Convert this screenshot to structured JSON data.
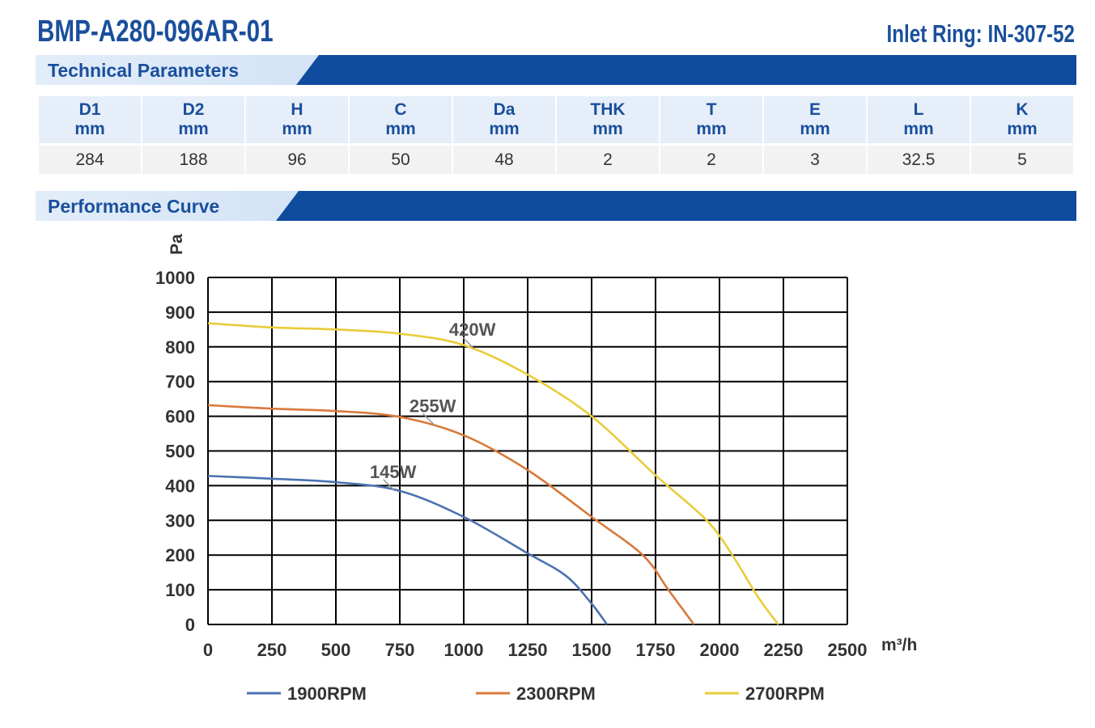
{
  "header": {
    "model": "BMP-A280-096AR-01",
    "inlet_ring": "Inlet Ring: IN-307-52"
  },
  "sections": {
    "technical": "Technical Parameters",
    "performance": "Performance Curve"
  },
  "params": {
    "columns": [
      {
        "name": "D1",
        "unit": "mm",
        "value": "284"
      },
      {
        "name": "D2",
        "unit": "mm",
        "value": "188"
      },
      {
        "name": "H",
        "unit": "mm",
        "value": "96"
      },
      {
        "name": "C",
        "unit": "mm",
        "value": "50"
      },
      {
        "name": "Da",
        "unit": "mm",
        "value": "48"
      },
      {
        "name": "THK",
        "unit": "mm",
        "value": "2"
      },
      {
        "name": "T",
        "unit": "mm",
        "value": "2"
      },
      {
        "name": "E",
        "unit": "mm",
        "value": "3"
      },
      {
        "name": "L",
        "unit": "mm",
        "value": "32.5"
      },
      {
        "name": "K",
        "unit": "mm",
        "value": "5"
      }
    ]
  },
  "chart_data": {
    "type": "line",
    "title": "",
    "xlabel": "m³/h",
    "ylabel": "Pa",
    "xlim": [
      0,
      2500
    ],
    "ylim": [
      0,
      1000
    ],
    "xticks": [
      0,
      250,
      500,
      750,
      1000,
      1250,
      1500,
      1750,
      2000,
      2250,
      2500
    ],
    "yticks": [
      0,
      100,
      200,
      300,
      400,
      500,
      600,
      700,
      800,
      900,
      1000
    ],
    "grid": true,
    "legend_position": "bottom",
    "series": [
      {
        "name": "1900RPM",
        "color": "#4a72b0",
        "points": [
          [
            0,
            428
          ],
          [
            250,
            420
          ],
          [
            500,
            410
          ],
          [
            750,
            385
          ],
          [
            1000,
            310
          ],
          [
            1250,
            205
          ],
          [
            1400,
            140
          ],
          [
            1500,
            60
          ],
          [
            1560,
            0
          ]
        ],
        "annotation": {
          "text": "145W",
          "x": 730,
          "y": 385
        }
      },
      {
        "name": "2300RPM",
        "color": "#d9793a",
        "points": [
          [
            0,
            632
          ],
          [
            250,
            622
          ],
          [
            500,
            615
          ],
          [
            750,
            598
          ],
          [
            1000,
            545
          ],
          [
            1250,
            445
          ],
          [
            1500,
            310
          ],
          [
            1700,
            200
          ],
          [
            1800,
            100
          ],
          [
            1900,
            0
          ]
        ],
        "annotation": {
          "text": "255W",
          "x": 885,
          "y": 575
        }
      },
      {
        "name": "2700RPM",
        "color": "#e8cc3a",
        "points": [
          [
            0,
            868
          ],
          [
            250,
            856
          ],
          [
            500,
            850
          ],
          [
            750,
            838
          ],
          [
            1000,
            805
          ],
          [
            1250,
            720
          ],
          [
            1500,
            600
          ],
          [
            1750,
            430
          ],
          [
            1950,
            300
          ],
          [
            2050,
            200
          ],
          [
            2150,
            80
          ],
          [
            2230,
            0
          ]
        ],
        "annotation": {
          "text": "420W",
          "x": 1040,
          "y": 795
        }
      }
    ]
  }
}
